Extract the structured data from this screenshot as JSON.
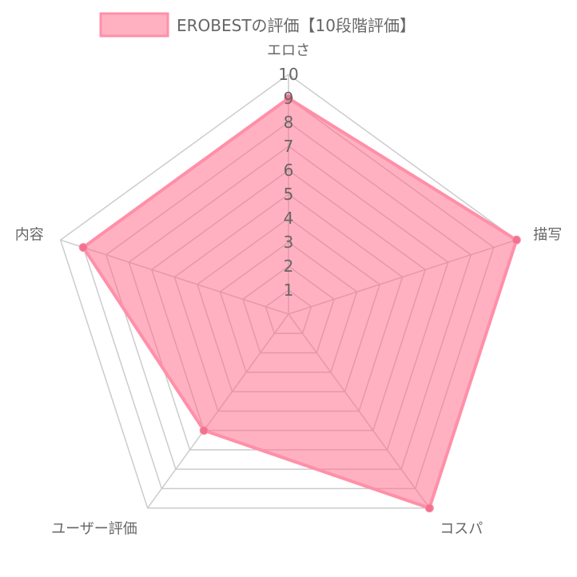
{
  "chart_data": {
    "type": "radar",
    "title": "",
    "legend": {
      "position": "top"
    },
    "categories": [
      "エロさ",
      "描写",
      "コスパ",
      "ユーザー評価",
      "内容"
    ],
    "series": [
      {
        "name": "EROBESTの評価【10段階評価】",
        "values": [
          9,
          10,
          10,
          6,
          9
        ],
        "fill_color": "#ff6384",
        "fill_opacity": 0.5,
        "line_color": "#ff8fa8",
        "point_color": "#f1728f"
      }
    ],
    "scale": {
      "min": 0,
      "max": 10,
      "step": 1,
      "ticks": [
        "1",
        "2",
        "3",
        "4",
        "5",
        "6",
        "7",
        "8",
        "9",
        "10"
      ]
    },
    "grid": true,
    "grid_color": "#cccccc"
  }
}
